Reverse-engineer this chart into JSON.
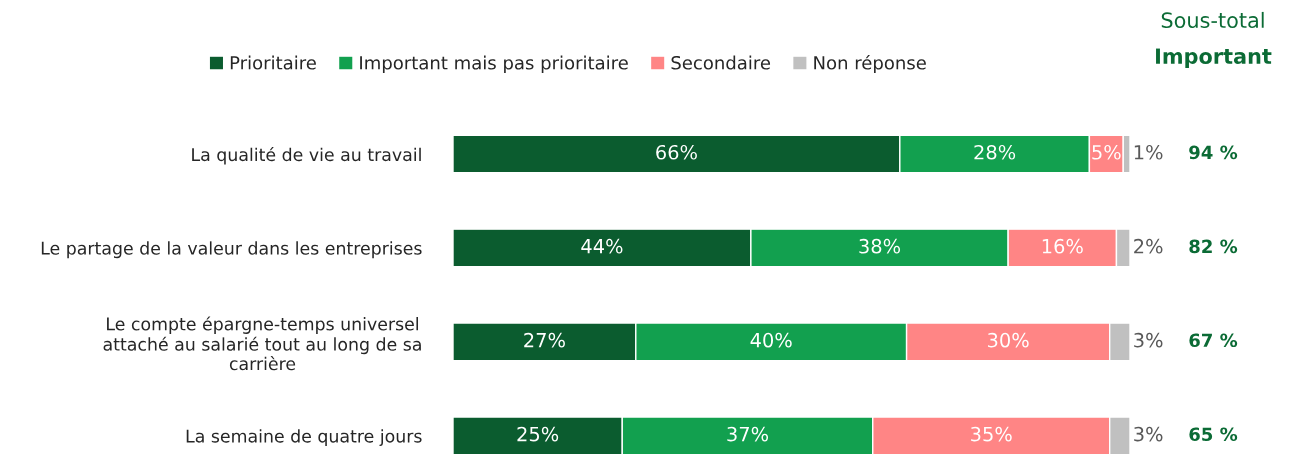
{
  "chart_data": {
    "type": "bar",
    "orientation": "horizontal",
    "stacked": true,
    "legend": "top",
    "categories": [
      "La qualité de vie au travail",
      "Le partage de la valeur dans les entreprises",
      "Le compte épargne-temps universel\nattaché au salarié tout au long de sa\ncarrière",
      "La semaine de quatre jours"
    ],
    "series": [
      {
        "name": "Prioritaire",
        "color": "#0b5c2f",
        "values": [
          66,
          44,
          27,
          25
        ],
        "value_labels": [
          "66%",
          "44%",
          "27%",
          "25%"
        ]
      },
      {
        "name": "Important mais pas prioritaire",
        "color": "#12a04f",
        "values": [
          28,
          38,
          40,
          37
        ],
        "value_labels": [
          "28%",
          "38%",
          "40%",
          "37%"
        ]
      },
      {
        "name": "Secondaire",
        "color": "#ff8585",
        "values": [
          5,
          16,
          30,
          35
        ],
        "value_labels": [
          "5%",
          "16%",
          "30%",
          "35%"
        ]
      },
      {
        "name": "Non réponse",
        "color": "#c0c0c0",
        "values": [
          1,
          2,
          3,
          3
        ],
        "value_labels": [
          "1%",
          "2%",
          "3%",
          "3%"
        ]
      }
    ],
    "annotations": [
      "Sous-total",
      "Important",
      "94 %",
      "82 %",
      "67 %",
      "65 %"
    ]
  }
}
